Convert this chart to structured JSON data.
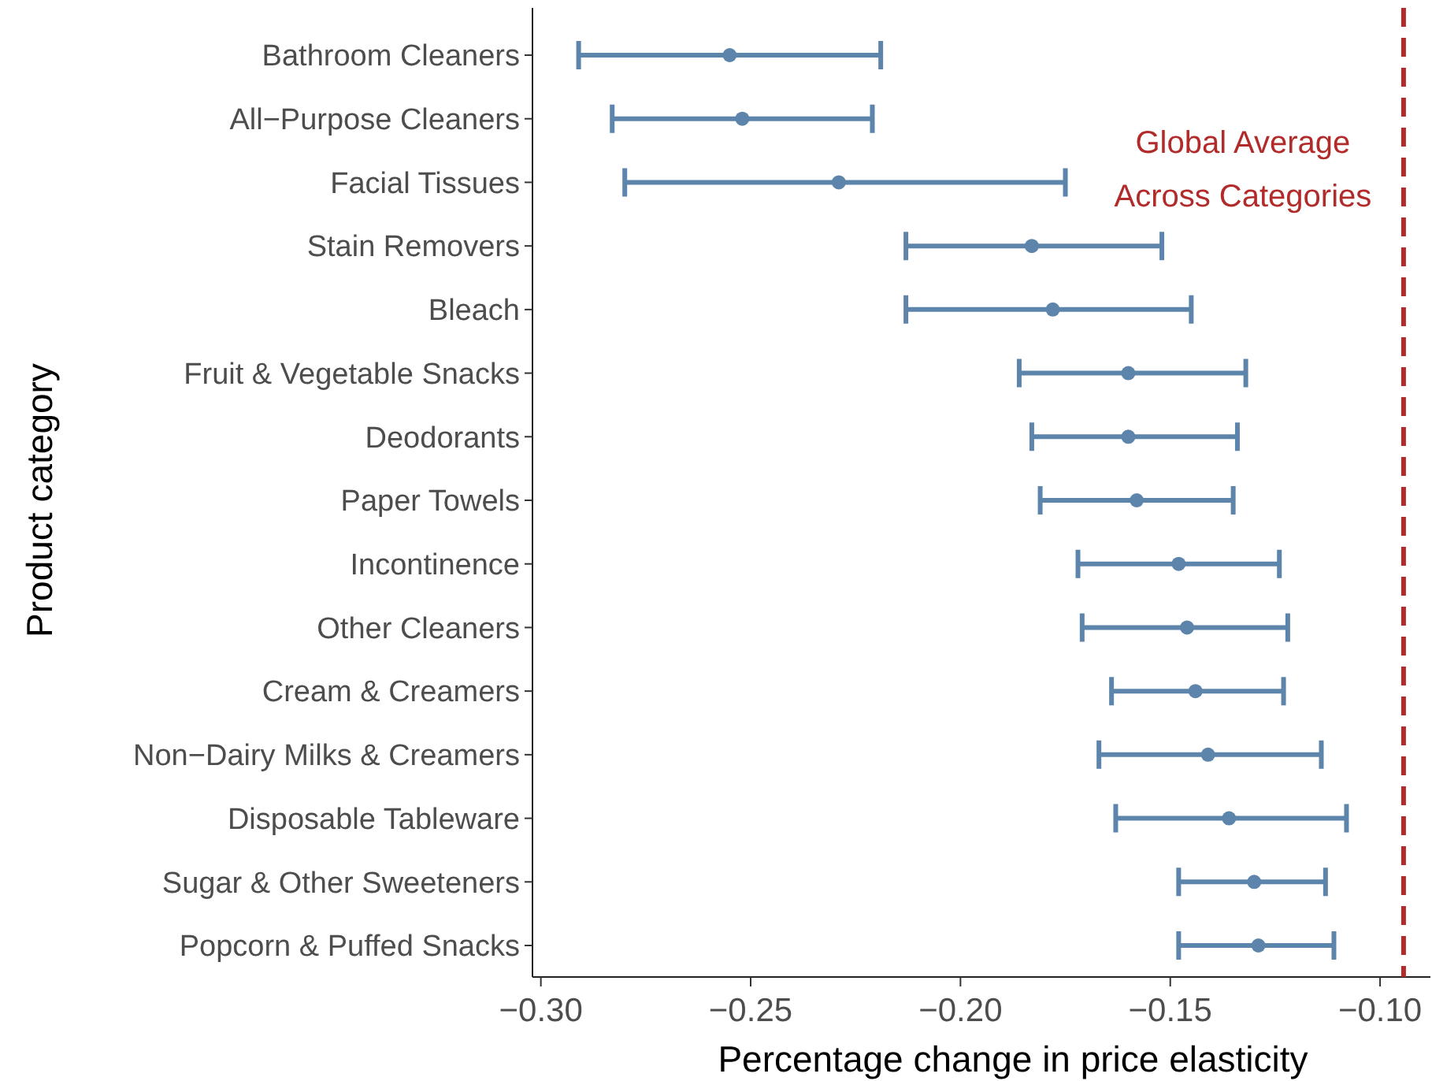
{
  "chart_data": {
    "type": "scatter",
    "orientation": "horizontal",
    "xlabel": "Percentage change in price elasticity",
    "ylabel": "Product category",
    "categories": [
      "Bathroom Cleaners",
      "All−Purpose Cleaners",
      "Facial Tissues",
      "Stain Removers",
      "Bleach",
      "Fruit & Vegetable Snacks",
      "Deodorants",
      "Paper Towels",
      "Incontinence",
      "Other Cleaners",
      "Cream & Creamers",
      "Non−Dairy Milks & Creamers",
      "Disposable Tableware",
      "Sugar & Other Sweeteners",
      "Popcorn & Puffed Snacks"
    ],
    "values": [
      -0.255,
      -0.252,
      -0.229,
      -0.183,
      -0.178,
      -0.16,
      -0.16,
      -0.158,
      -0.148,
      -0.146,
      -0.144,
      -0.141,
      -0.136,
      -0.13,
      -0.129
    ],
    "errors": [
      [
        -0.291,
        -0.219
      ],
      [
        -0.283,
        -0.221
      ],
      [
        -0.28,
        -0.175
      ],
      [
        -0.213,
        -0.152
      ],
      [
        -0.213,
        -0.145
      ],
      [
        -0.186,
        -0.132
      ],
      [
        -0.183,
        -0.134
      ],
      [
        -0.181,
        -0.135
      ],
      [
        -0.172,
        -0.124
      ],
      [
        -0.171,
        -0.122
      ],
      [
        -0.164,
        -0.123
      ],
      [
        -0.167,
        -0.114
      ],
      [
        -0.163,
        -0.108
      ],
      [
        -0.148,
        -0.113
      ],
      [
        -0.148,
        -0.111
      ]
    ],
    "color": "#5d84ab",
    "marker": "circle",
    "grid": false,
    "xlim": [
      -0.302,
      -0.088
    ],
    "xticks": [
      {
        "value": -0.3,
        "label": "−0.30"
      },
      {
        "value": -0.25,
        "label": "−0.25"
      },
      {
        "value": -0.2,
        "label": "−0.20"
      },
      {
        "value": -0.15,
        "label": "−0.15"
      },
      {
        "value": -0.1,
        "label": "−0.10"
      }
    ],
    "ref_lines": [
      {
        "axis": "x",
        "value": -0.0944,
        "label": "Global Average\nAcross Categories",
        "color": "#b22b2b",
        "line_style": "dashed"
      }
    ]
  }
}
